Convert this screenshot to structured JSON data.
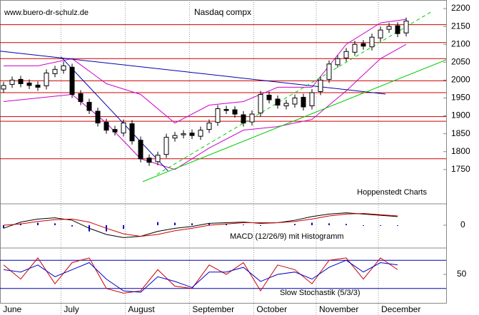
{
  "chart_data": {
    "type": "candlestick",
    "title": "Nasdaq compx",
    "source": "www.buero-dr-schulz.de",
    "credit": "Hoppenstedt Charts",
    "open": [
      1975,
      1988,
      2002,
      1992,
      1986,
      1984,
      2018,
      2028,
      2036,
      1962,
      1938,
      1913,
      1882,
      1862,
      1852,
      1878,
      1832,
      1782,
      1772,
      1792,
      1838,
      1847,
      1852,
      1843,
      1862,
      1882,
      1918,
      1917,
      1903,
      1883,
      1908,
      1958,
      1947,
      1928,
      1933,
      1952,
      1928,
      1968,
      2002,
      2043,
      2062,
      2078,
      2102,
      2093,
      2118,
      2142,
      2152,
      2132
    ],
    "high": [
      1995,
      2010,
      2012,
      2002,
      1996,
      2030,
      2040,
      2052,
      2046,
      1972,
      1948,
      1923,
      1892,
      1872,
      1890,
      1888,
      1842,
      1792,
      1800,
      1850,
      1855,
      1860,
      1862,
      1870,
      1890,
      1930,
      1928,
      1927,
      1913,
      1915,
      1970,
      1968,
      1957,
      1945,
      1960,
      1962,
      1975,
      2010,
      2055,
      2070,
      2090,
      2110,
      2112,
      2130,
      2150,
      2160,
      2162,
      2175
    ],
    "low": [
      1965,
      1978,
      1980,
      1975,
      1970,
      1974,
      2008,
      2018,
      1950,
      1930,
      1905,
      1870,
      1850,
      1845,
      1842,
      1820,
      1770,
      1760,
      1762,
      1782,
      1828,
      1837,
      1835,
      1833,
      1852,
      1872,
      1905,
      1895,
      1870,
      1873,
      1898,
      1935,
      1920,
      1918,
      1923,
      1915,
      1918,
      1958,
      1992,
      2035,
      2052,
      2068,
      2085,
      2083,
      2108,
      2132,
      2120,
      2122
    ],
    "close": [
      1985,
      2000,
      1990,
      1985,
      1980,
      2020,
      2030,
      2040,
      1960,
      1940,
      1915,
      1880,
      1860,
      1855,
      1880,
      1830,
      1780,
      1770,
      1790,
      1840,
      1845,
      1850,
      1845,
      1860,
      1880,
      1920,
      1915,
      1905,
      1880,
      1905,
      1960,
      1945,
      1930,
      1935,
      1950,
      1925,
      1965,
      2000,
      2045,
      2060,
      2080,
      2100,
      2095,
      2120,
      2140,
      2150,
      2130,
      2165
    ],
    "ylim": [
      1656,
      2224
    ],
    "yticks": [
      1750,
      1800,
      1850,
      1900,
      1950,
      2000,
      2050,
      2100,
      2150,
      2200
    ],
    "levels": [
      2155,
      2105,
      2060,
      1998,
      1965,
      1898,
      1885,
      1780
    ],
    "level_color": "#cc0000",
    "bands": {
      "color": "#cc00cc",
      "x": [
        0,
        4,
        8,
        12,
        16,
        20,
        24,
        28,
        32,
        36,
        40,
        44,
        47
      ],
      "upper": [
        2040,
        2040,
        2060,
        1990,
        1960,
        1880,
        1930,
        1940,
        1980,
        1980,
        2100,
        2160,
        2170
      ],
      "middle": [
        1990,
        1995,
        2010,
        1930,
        1870,
        1815,
        1870,
        1900,
        1920,
        1940,
        2030,
        2110,
        2130
      ],
      "lower": [
        1940,
        1950,
        1960,
        1880,
        1780,
        1750,
        1810,
        1860,
        1870,
        1890,
        1970,
        2060,
        2100
      ]
    },
    "trendlines": [
      {
        "color": "#0000aa",
        "x": [
          -0.4,
          44.6
        ],
        "values": [
          2081,
          1961
        ]
      },
      {
        "color": "#0000aa",
        "x": [
          6.7,
          19.2
        ],
        "values": [
          2065,
          1746
        ]
      },
      {
        "color": "#00cc00",
        "x": [
          16.25,
          54.6
        ],
        "values": [
          1716,
          2085
        ]
      },
      {
        "color": "#00cc00",
        "x": [
          17.9,
          50
        ],
        "values": [
          1736,
          2192
        ],
        "dashed": true
      }
    ],
    "months": [
      "June",
      "July",
      "August",
      "September",
      "October",
      "November",
      "December"
    ],
    "month_starts": [
      -0.4,
      6.7,
      14.2,
      21.7,
      29.2,
      36.5,
      43.75
    ],
    "macd": {
      "label": "MACD (12/26/9) mit Histogramm",
      "ylim": [
        -30,
        30
      ],
      "yticks": [
        0
      ],
      "x": [
        0,
        2,
        4,
        6,
        8,
        10,
        12,
        14,
        16,
        18,
        20,
        22,
        24,
        26,
        28,
        30,
        32,
        34,
        36,
        38,
        40,
        42,
        44,
        46
      ],
      "macd": [
        -5,
        5,
        10,
        12,
        8,
        -5,
        -15,
        -20,
        -18,
        -10,
        -5,
        -2,
        3,
        4,
        5,
        3,
        4,
        8,
        14,
        18,
        20,
        18,
        16,
        14
      ],
      "signal": [
        0,
        2,
        6,
        9,
        10,
        5,
        -5,
        -14,
        -18,
        -15,
        -9,
        -5,
        0,
        2,
        4,
        4,
        4,
        6,
        10,
        15,
        18,
        19,
        17,
        15
      ],
      "histogram": [
        -5,
        3,
        4,
        3,
        -2,
        -10,
        -10,
        -6,
        0,
        5,
        4,
        3,
        3,
        2,
        1,
        -1,
        0,
        2,
        4,
        3,
        2,
        -1,
        -1,
        -1
      ],
      "macd_color": "#000000",
      "signal_color": "#cc0000",
      "histogram_color": "#0000cc"
    },
    "stochastic": {
      "label": "Slow Stochastik (5/3/3)",
      "ylim": [
        0,
        100
      ],
      "yticks": [
        50
      ],
      "levels": [
        80,
        20
      ],
      "x": [
        0,
        2,
        4,
        6,
        8,
        10,
        12,
        14,
        16,
        18,
        20,
        22,
        24,
        26,
        28,
        30,
        32,
        34,
        36,
        38,
        40,
        42,
        44,
        46
      ],
      "k": [
        70,
        40,
        85,
        30,
        75,
        85,
        20,
        10,
        15,
        60,
        25,
        20,
        70,
        50,
        75,
        15,
        70,
        60,
        30,
        80,
        85,
        40,
        85,
        60
      ],
      "d": [
        60,
        55,
        70,
        45,
        60,
        75,
        40,
        15,
        12,
        45,
        35,
        22,
        55,
        55,
        65,
        35,
        50,
        55,
        40,
        65,
        80,
        55,
        75,
        70
      ],
      "k_color": "#cc0000",
      "d_color": "#0000cc"
    }
  }
}
